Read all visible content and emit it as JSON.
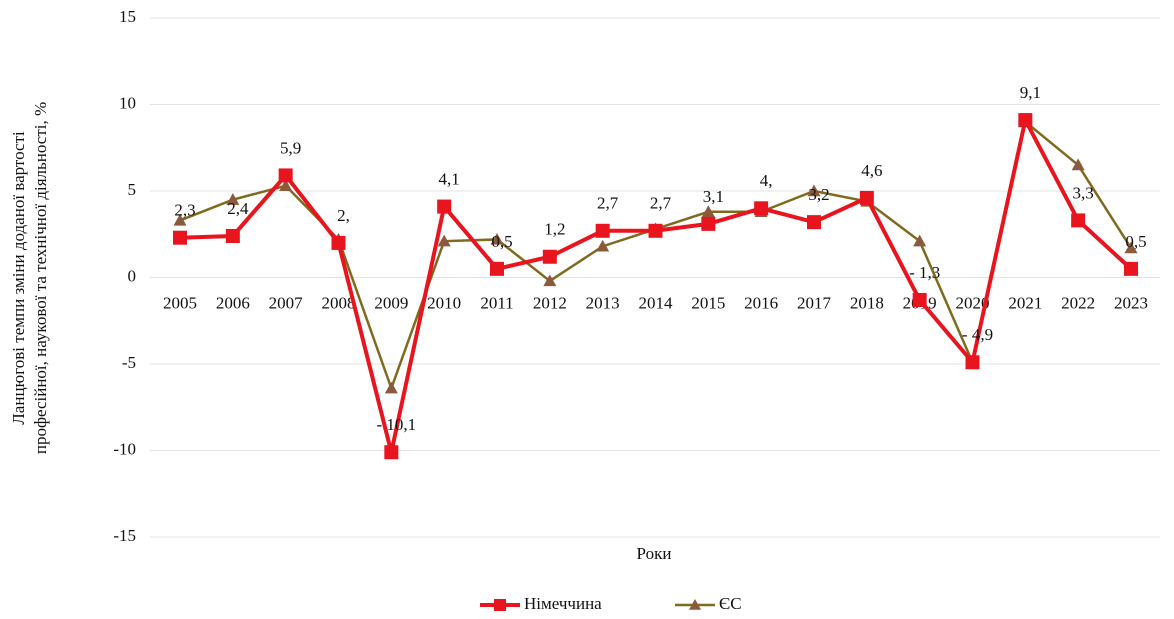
{
  "chart_data": {
    "type": "line",
    "ylabel": [
      "Ланцюгові темпи зміни доданої вартості",
      "професійної, наукової та технічної діяльності, %"
    ],
    "xlabel": "Роки",
    "categories": [
      "2005",
      "2006",
      "2007",
      "2008",
      "2009",
      "2010",
      "2011",
      "2012",
      "2013",
      "2014",
      "2015",
      "2016",
      "2017",
      "2018",
      "2019",
      "2020",
      "2021",
      "2022",
      "2023"
    ],
    "series": [
      {
        "name": "Німеччина",
        "color": "#e8141e",
        "marker": "square",
        "values": [
          2.3,
          2.4,
          5.9,
          2.0,
          -10.1,
          4.1,
          0.5,
          1.2,
          2.7,
          2.7,
          3.1,
          4.0,
          3.2,
          4.6,
          -1.3,
          -4.9,
          9.1,
          3.3,
          0.5
        ],
        "value_labels": [
          "2,3",
          "2,4",
          "5,9",
          "2,",
          "- 10,1",
          "4,1",
          "0,5",
          "1,2",
          "2,7",
          "2,7",
          "3,1",
          "4,",
          "3,2",
          "4,6",
          "- 1,3",
          "- 4,9",
          "9,1",
          "3,3",
          "0,5"
        ]
      },
      {
        "name": "ЄС",
        "color": "#7f6a1e",
        "marker": "triangle",
        "values": [
          3.3,
          4.5,
          5.3,
          2.2,
          -6.4,
          2.1,
          2.2,
          -0.2,
          1.8,
          2.8,
          3.8,
          3.8,
          5.0,
          4.4,
          2.1,
          -4.9,
          9.0,
          6.5,
          1.7
        ]
      }
    ],
    "ylim": [
      -15,
      15
    ],
    "yticks": [
      -15,
      -10,
      -5,
      0,
      5,
      10,
      15
    ],
    "grid": true,
    "legend": "bottom"
  }
}
